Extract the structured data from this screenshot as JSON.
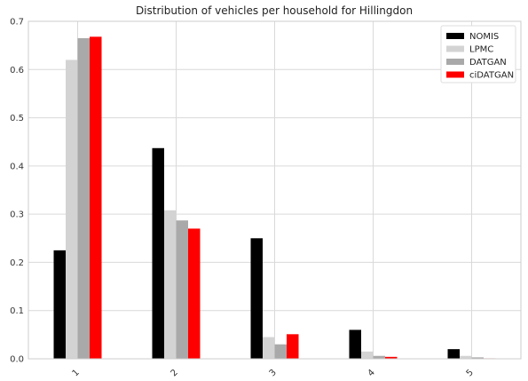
{
  "chart_data": {
    "type": "bar",
    "title": "Distribution of vehicles per household for Hillingdon",
    "xlabel": "",
    "ylabel": "",
    "categories": [
      "1",
      "2",
      "3",
      "4",
      "5"
    ],
    "ylim": [
      0,
      0.7
    ],
    "yticks": [
      "0.0",
      "0.1",
      "0.2",
      "0.3",
      "0.4",
      "0.5",
      "0.6",
      "0.7"
    ],
    "grid": true,
    "legend_position": "top-right",
    "series": [
      {
        "name": "NOMIS",
        "color": "#000000",
        "values": [
          0.225,
          0.437,
          0.25,
          0.06,
          0.02
        ]
      },
      {
        "name": "LPMC",
        "color": "#d3d3d3",
        "values": [
          0.62,
          0.308,
          0.045,
          0.015,
          0.006
        ]
      },
      {
        "name": "DATGAN",
        "color": "#a9a9a9",
        "values": [
          0.665,
          0.287,
          0.03,
          0.006,
          0.003
        ]
      },
      {
        "name": "ciDATGAN",
        "color": "#ff0000",
        "values": [
          0.668,
          0.27,
          0.051,
          0.004,
          0.001
        ]
      }
    ]
  }
}
